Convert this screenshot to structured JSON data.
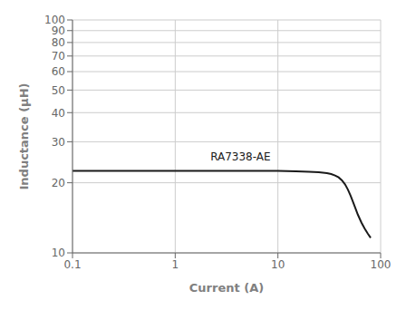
{
  "chart_data": {
    "type": "line",
    "title": "",
    "xlabel": "Current (A)",
    "ylabel": "Inductance (μH)",
    "log": true,
    "grid": true,
    "xlim": [
      0.1,
      100
    ],
    "ylim": [
      10,
      100
    ],
    "xticks": [
      0.1,
      1,
      10,
      100
    ],
    "yticks": [
      10,
      20,
      30,
      40,
      50,
      60,
      70,
      80,
      90,
      100
    ],
    "x": [
      0.1,
      0.15,
      0.2,
      0.3,
      0.5,
      0.7,
      1.0,
      1.5,
      2.0,
      3.0,
      5.0,
      7.0,
      10.0,
      15.0,
      20.0,
      25.0,
      30.0,
      33.0,
      36.0,
      39.0,
      42.0,
      45.0,
      48.0,
      51.0,
      54.0,
      57.0,
      60.0,
      65.0,
      70.0,
      75.0,
      80.0
    ],
    "values": [
      22.5,
      22.5,
      22.5,
      22.5,
      22.5,
      22.5,
      22.5,
      22.5,
      22.5,
      22.5,
      22.5,
      22.5,
      22.5,
      22.4,
      22.3,
      22.2,
      22.0,
      21.8,
      21.5,
      21.1,
      20.5,
      19.7,
      18.7,
      17.6,
      16.5,
      15.5,
      14.6,
      13.5,
      12.7,
      12.1,
      11.6
    ],
    "color": "#1a1a1a",
    "annotations": [
      {
        "text": "RA7338-AE",
        "x": 2.2,
        "y": 25.0
      }
    ]
  }
}
